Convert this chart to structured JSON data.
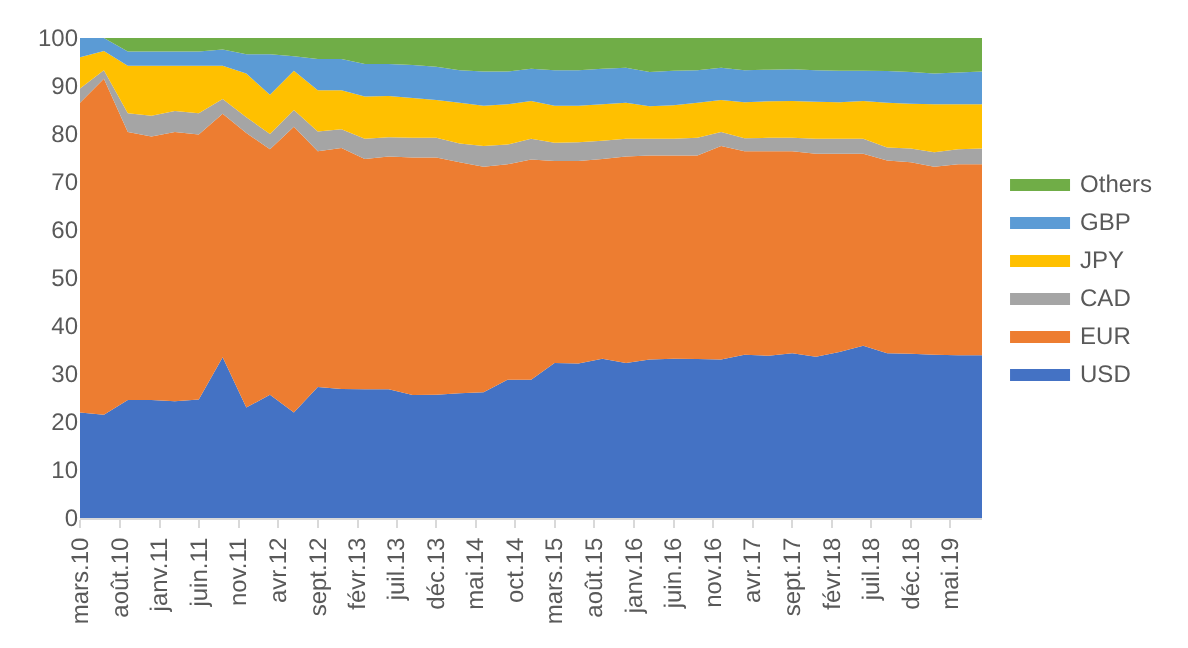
{
  "chart_data": {
    "type": "area",
    "stacked": true,
    "legend": "right",
    "grid": false,
    "x": [
      "2010-03",
      "2010-06",
      "2010-09",
      "2010-12",
      "2011-03",
      "2011-06",
      "2011-09",
      "2011-12",
      "2012-03",
      "2012-06",
      "2012-09",
      "2012-12",
      "2013-03",
      "2013-06",
      "2013-09",
      "2013-12",
      "2014-03",
      "2014-06",
      "2014-09",
      "2014-12",
      "2015-03",
      "2015-06",
      "2015-09",
      "2015-12",
      "2016-03",
      "2016-06",
      "2016-09",
      "2016-12",
      "2017-03",
      "2017-06",
      "2017-09",
      "2017-12",
      "2018-03",
      "2018-06",
      "2018-09",
      "2018-12",
      "2019-03",
      "2019-06",
      "2019-09"
    ],
    "xlim": [
      "2010-03",
      "2019-09"
    ],
    "xticks": [
      {
        "value": "2010-03",
        "label": "mars.10"
      },
      {
        "value": "2010-08",
        "label": "août.10"
      },
      {
        "value": "2011-01",
        "label": "janv.11"
      },
      {
        "value": "2011-06",
        "label": "juin.11"
      },
      {
        "value": "2011-11",
        "label": "nov.11"
      },
      {
        "value": "2012-04",
        "label": "avr.12"
      },
      {
        "value": "2012-09",
        "label": "sept.12"
      },
      {
        "value": "2013-02",
        "label": "févr.13"
      },
      {
        "value": "2013-07",
        "label": "juil.13"
      },
      {
        "value": "2013-12",
        "label": "déc.13"
      },
      {
        "value": "2014-05",
        "label": "mai.14"
      },
      {
        "value": "2014-10",
        "label": "oct.14"
      },
      {
        "value": "2015-03",
        "label": "mars.15"
      },
      {
        "value": "2015-08",
        "label": "août.15"
      },
      {
        "value": "2016-01",
        "label": "janv.16"
      },
      {
        "value": "2016-06",
        "label": "juin.16"
      },
      {
        "value": "2016-11",
        "label": "nov.16"
      },
      {
        "value": "2017-04",
        "label": "avr.17"
      },
      {
        "value": "2017-09",
        "label": "sept.17"
      },
      {
        "value": "2018-02",
        "label": "févr.18"
      },
      {
        "value": "2018-07",
        "label": "juil.18"
      },
      {
        "value": "2018-12",
        "label": "déc.18"
      },
      {
        "value": "2019-05",
        "label": "mai.19"
      }
    ],
    "ylim": [
      0,
      100
    ],
    "yticks": [
      0,
      10,
      20,
      30,
      40,
      50,
      60,
      70,
      80,
      90,
      100
    ],
    "series": [
      {
        "name": "USD",
        "color": "#4472c4",
        "values": [
          22,
          21.5,
          24.6,
          24.6,
          24.3,
          24.7,
          33.5,
          23,
          25.7,
          22,
          27.3,
          26.9,
          26.8,
          26.8,
          25.6,
          25.7,
          26,
          26.2,
          28.8,
          28.8,
          32.3,
          32.2,
          33.2,
          32.3,
          33,
          33.2,
          33.1,
          33,
          34,
          33.8,
          34.3,
          33.6,
          34.6,
          35.9,
          34.3,
          34.2,
          34,
          33.9,
          33.9
        ]
      },
      {
        "name": "EUR",
        "color": "#ed7d31",
        "values": [
          64.5,
          70,
          55.8,
          54.9,
          56.1,
          55.2,
          50.7,
          57.2,
          51.1,
          59.5,
          49.1,
          50.2,
          48,
          48.5,
          49.5,
          49.4,
          48.1,
          47,
          44.9,
          45.9,
          42.1,
          42.2,
          41.6,
          43,
          42.5,
          42.3,
          42.4,
          44.5,
          42.4,
          42.6,
          42.1,
          42.3,
          41.3,
          40,
          40.2,
          39.9,
          39.2,
          39.8,
          39.8
        ]
      },
      {
        "name": "CAD",
        "color": "#a5a5a5",
        "values": [
          3,
          1.8,
          3.9,
          4.3,
          4.4,
          4.4,
          3.1,
          3.3,
          3.2,
          3.5,
          4.1,
          3.9,
          4.2,
          4,
          4.1,
          4.1,
          3.9,
          4.3,
          4.1,
          4.3,
          3.8,
          3.9,
          3.8,
          3.7,
          3.5,
          3.5,
          3.7,
          2.9,
          2.7,
          2.8,
          2.8,
          3.1,
          3.1,
          3.1,
          2.7,
          2.9,
          3,
          3.1,
          3.3
        ]
      },
      {
        "name": "JPY",
        "color": "#ffc000",
        "values": [
          6.5,
          4,
          9.9,
          10.4,
          9.4,
          9.9,
          6.9,
          9.1,
          8.2,
          8.2,
          8.6,
          8.1,
          8.8,
          8.6,
          8.3,
          7.9,
          8.5,
          8.4,
          8.4,
          7.9,
          7.7,
          7.6,
          7.6,
          7.5,
          6.8,
          7,
          7.3,
          6.7,
          7.5,
          7.6,
          7.7,
          7.7,
          7.6,
          7.9,
          9.3,
          9.3,
          10,
          9.4,
          9.2
        ]
      },
      {
        "name": "GBP",
        "color": "#5b9bd5",
        "values": [
          4,
          2.7,
          3,
          3,
          3,
          3,
          3.4,
          4,
          8.4,
          3,
          6.5,
          6.5,
          6.8,
          6.7,
          6.9,
          6.9,
          6.8,
          7.1,
          6.8,
          6.7,
          7.4,
          7.4,
          7.4,
          7.3,
          7.1,
          7.2,
          6.8,
          6.7,
          6.7,
          6.6,
          6.6,
          6.6,
          6.6,
          6.3,
          6.6,
          6.6,
          6.4,
          6.6,
          6.8
        ]
      },
      {
        "name": "Others",
        "color": "#70ad47",
        "values": [
          0,
          0,
          2.8,
          2.8,
          2.8,
          2.8,
          2.4,
          3.4,
          3.4,
          3.8,
          4.4,
          4.4,
          5.4,
          5.4,
          5.6,
          6,
          6.7,
          7,
          7,
          6.4,
          6.7,
          6.7,
          6.4,
          6.2,
          7.1,
          6.8,
          6.7,
          6.2,
          6.7,
          6.6,
          6.5,
          6.7,
          6.8,
          6.8,
          6.9,
          7.1,
          7.4,
          7.2,
          7
        ]
      }
    ]
  }
}
